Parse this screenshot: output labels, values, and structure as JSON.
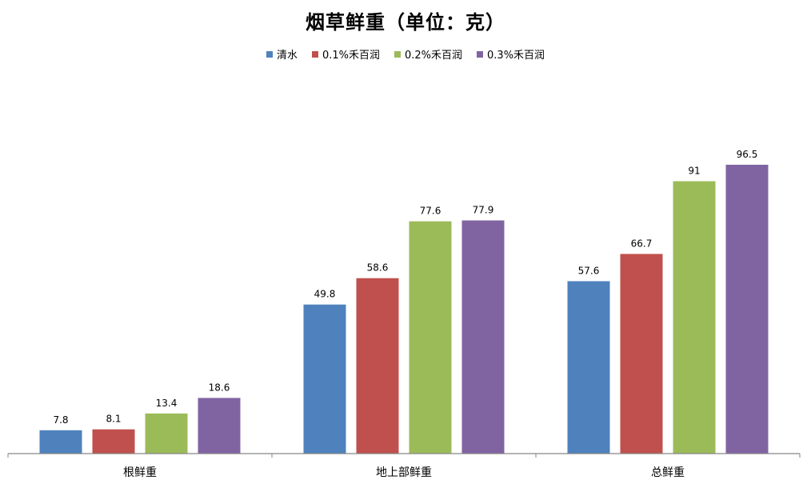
{
  "chart_data": {
    "type": "bar",
    "title": "烟草鲜重（单位：克）",
    "categories": [
      "根鲜重",
      "地上部鲜重",
      "总鲜重"
    ],
    "series": [
      {
        "name": "清水",
        "color": "#4F81BD",
        "values": [
          7.8,
          49.8,
          57.6
        ]
      },
      {
        "name": "0.1%禾百润",
        "color": "#C0504D",
        "values": [
          8.1,
          58.6,
          66.7
        ]
      },
      {
        "name": "0.2%禾百润",
        "color": "#9BBB59",
        "values": [
          13.4,
          77.6,
          91
        ]
      },
      {
        "name": "0.3%禾百润",
        "color": "#8064A2",
        "values": [
          18.6,
          77.9,
          96.5
        ]
      }
    ],
    "ylim": [
      0,
      120
    ],
    "grid": false,
    "legend": "top",
    "axis_color": "#868686"
  }
}
